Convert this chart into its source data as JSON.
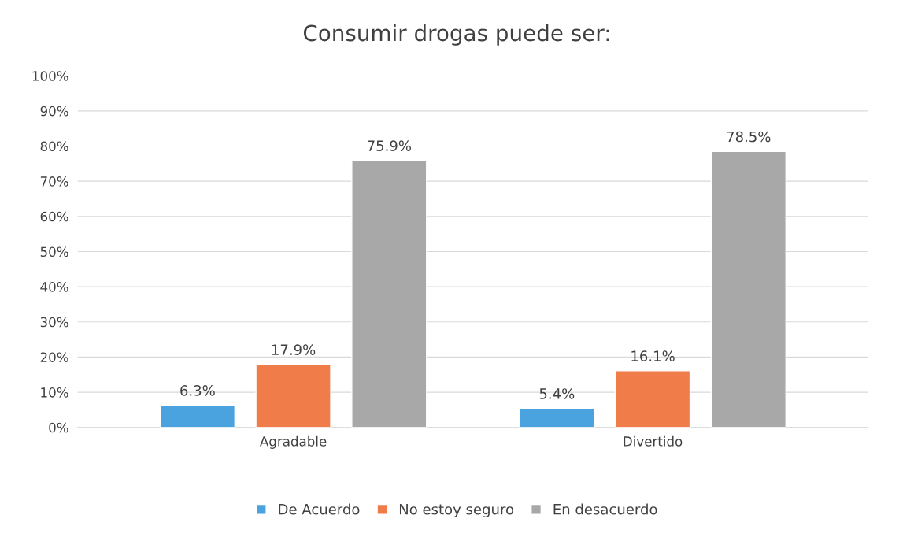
{
  "chart_data": {
    "type": "bar",
    "title": "Consumir drogas puede ser:",
    "categories": [
      "Agradable",
      "Divertido"
    ],
    "series": [
      {
        "name": "De Acuerdo",
        "color": "#4aa3df",
        "values": [
          6.3,
          5.4
        ],
        "value_labels": [
          "6.3%",
          "5.4%"
        ]
      },
      {
        "name": "No estoy seguro",
        "color": "#f07c4a",
        "values": [
          17.9,
          16.1
        ],
        "value_labels": [
          "17.9%",
          "16.1%"
        ]
      },
      {
        "name": "En desacuerdo",
        "color": "#a8a8a8",
        "values": [
          75.9,
          78.5
        ],
        "value_labels": [
          "75.9%",
          "78.5%"
        ]
      }
    ],
    "ylim": [
      0,
      100
    ],
    "yticks": [
      {
        "value": 0,
        "label": "0%"
      },
      {
        "value": 10,
        "label": "10%"
      },
      {
        "value": 20,
        "label": "20%"
      },
      {
        "value": 30,
        "label": "30%"
      },
      {
        "value": 40,
        "label": "40%"
      },
      {
        "value": 50,
        "label": "50%"
      },
      {
        "value": 60,
        "label": "60%"
      },
      {
        "value": 70,
        "label": "70%"
      },
      {
        "value": 80,
        "label": "80%"
      },
      {
        "value": 90,
        "label": "90%"
      },
      {
        "value": 100,
        "label": "100%"
      }
    ],
    "grid": "y",
    "legend": "bottom"
  }
}
